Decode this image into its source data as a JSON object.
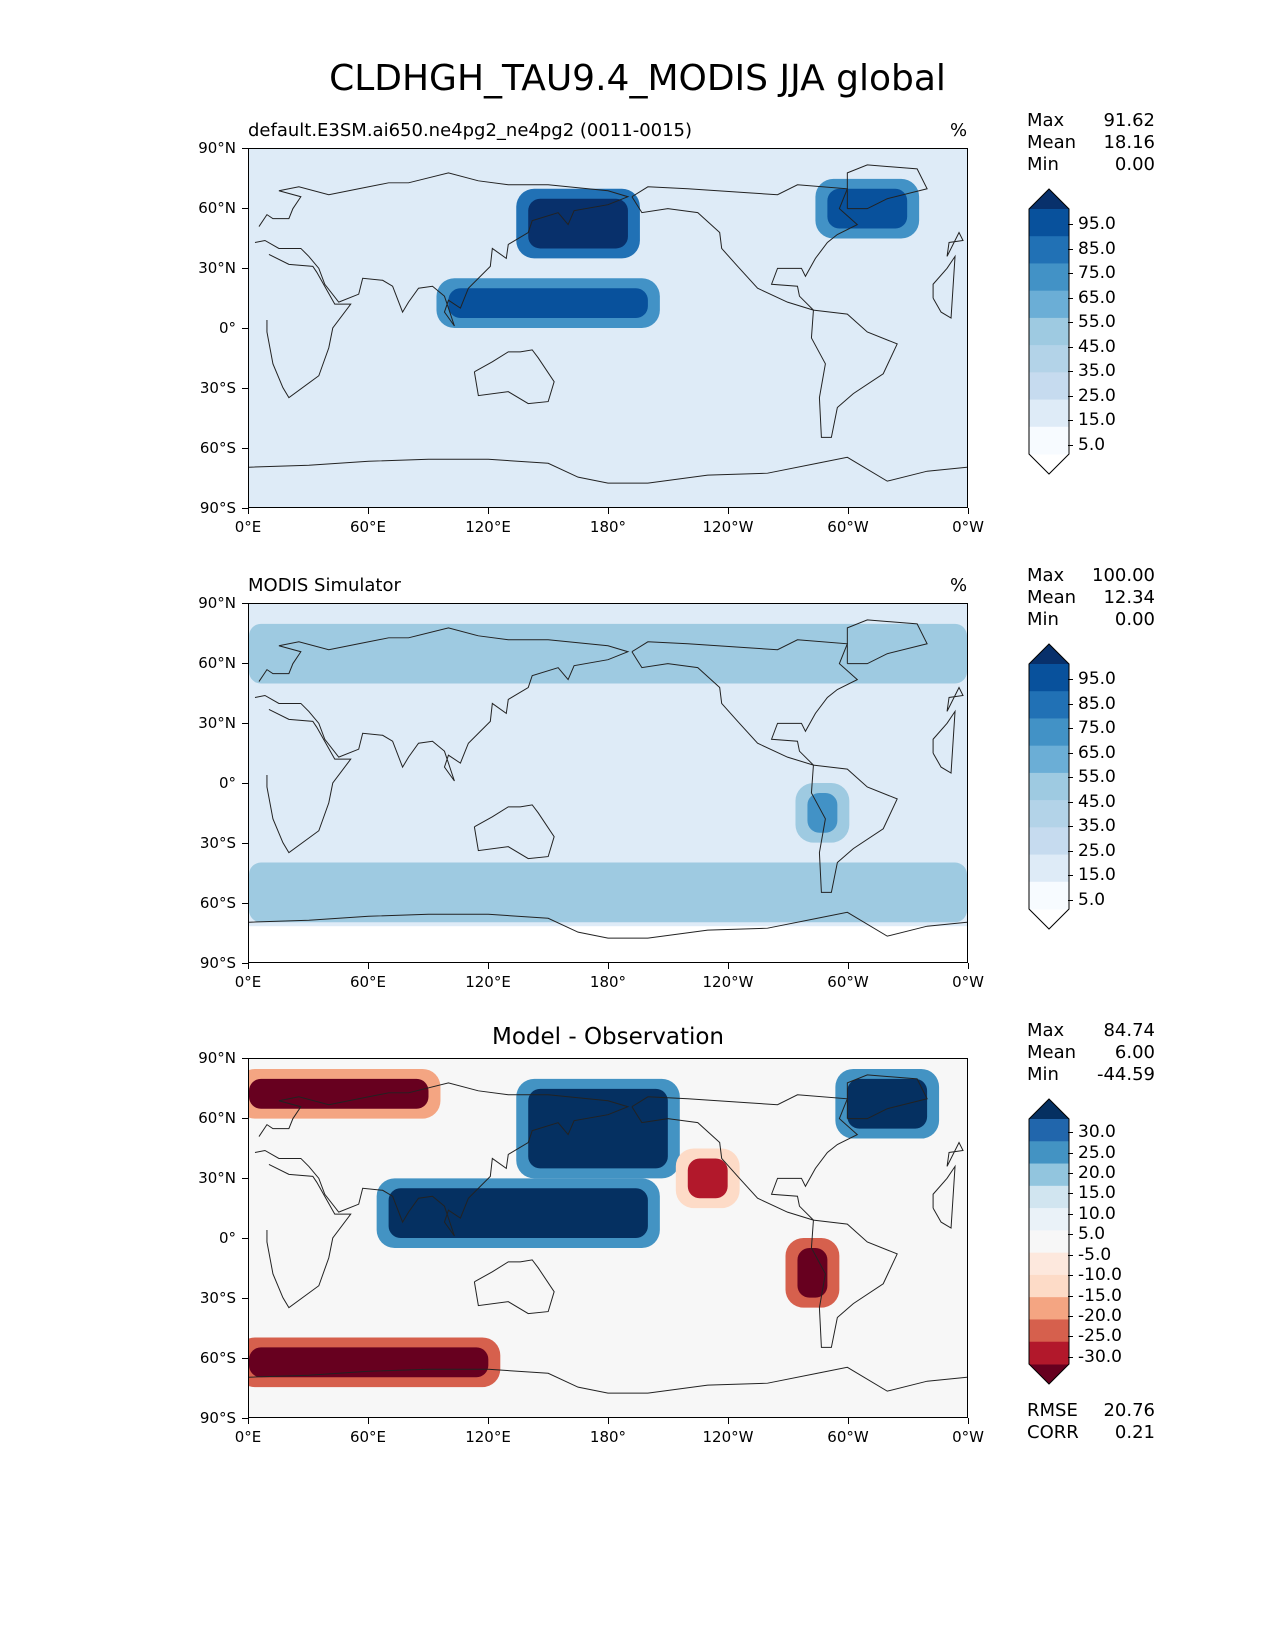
{
  "figure_title": "CLDHGH_TAU9.4_MODIS JJA global",
  "colors": {
    "blues": [
      "#f7fbff",
      "#deebf7",
      "#c6dbef",
      "#9ecae1",
      "#6baed6",
      "#4292c6",
      "#2171b5",
      "#08519c",
      "#08306b"
    ],
    "diverging": [
      "#67001f",
      "#b2182b",
      "#d6604d",
      "#f4a582",
      "#fddbc7",
      "#f7f7f7",
      "#d1e5f0",
      "#92c5de",
      "#4393c3",
      "#2166ac",
      "#053061"
    ],
    "coastline": "#222222"
  },
  "axes": {
    "lat_ticks": [
      "90°N",
      "60°N",
      "30°N",
      "0°",
      "30°S",
      "60°S",
      "90°S"
    ],
    "lon_ticks": [
      "0°E",
      "60°E",
      "120°E",
      "180°",
      "120°W",
      "60°W",
      "0°W"
    ]
  },
  "panels": [
    {
      "id": "model",
      "title_left": "default.E3SM.ai650.ne4pg2_ne4pg2 (0011-0015)",
      "title_right": "%",
      "stats": [
        {
          "label": "Max",
          "value": "91.62"
        },
        {
          "label": "Mean",
          "value": "18.16"
        },
        {
          "label": "Min",
          "value": "0.00"
        }
      ],
      "colorbar": {
        "labels": [
          "95.0",
          "85.0",
          "75.0",
          "65.0",
          "55.0",
          "45.0",
          "35.0",
          "25.0",
          "15.0",
          "5.0"
        ],
        "palette": "blues"
      }
    },
    {
      "id": "obs",
      "title_left": "MODIS Simulator",
      "title_right": "%",
      "stats": [
        {
          "label": "Max",
          "value": "100.00"
        },
        {
          "label": "Mean",
          "value": "12.34"
        },
        {
          "label": "Min",
          "value": "0.00"
        }
      ],
      "colorbar": {
        "labels": [
          "95.0",
          "85.0",
          "75.0",
          "65.0",
          "55.0",
          "45.0",
          "35.0",
          "25.0",
          "15.0",
          "5.0"
        ],
        "palette": "blues"
      }
    },
    {
      "id": "diff",
      "title_center": "Model - Observation",
      "stats": [
        {
          "label": "Max",
          "value": "84.74"
        },
        {
          "label": "Mean",
          "value": "6.00"
        },
        {
          "label": "Min",
          "value": "-44.59"
        }
      ],
      "stats_bottom": [
        {
          "label": "RMSE",
          "value": "20.76"
        },
        {
          "label": "CORR",
          "value": "0.21"
        }
      ],
      "colorbar": {
        "labels": [
          "30.0",
          "25.0",
          "20.0",
          "15.0",
          "10.0",
          "5.0",
          "-5.0",
          "-10.0",
          "-15.0",
          "-20.0",
          "-25.0",
          "-30.0"
        ],
        "palette": "diverging"
      }
    }
  ],
  "chart_data": [
    {
      "type": "heatmap",
      "title": "default.E3SM.ai650.ne4pg2_ne4pg2 (0011-0015)",
      "units": "%",
      "xlim": [
        0,
        360
      ],
      "ylim": [
        -90,
        90
      ],
      "levels": [
        5,
        15,
        25,
        35,
        45,
        55,
        65,
        75,
        85,
        95
      ],
      "max": 91.62,
      "mean": 18.16,
      "min": 0.0,
      "features": [
        {
          "lon": [
            100,
            200
          ],
          "lat": [
            5,
            20
          ],
          "level": 65
        },
        {
          "lon": [
            140,
            190
          ],
          "lat": [
            40,
            65
          ],
          "level": 75
        },
        {
          "lon": [
            290,
            330
          ],
          "lat": [
            50,
            70
          ],
          "level": 65
        }
      ]
    },
    {
      "type": "heatmap",
      "title": "MODIS Simulator",
      "units": "%",
      "xlim": [
        0,
        360
      ],
      "ylim": [
        -90,
        90
      ],
      "levels": [
        5,
        15,
        25,
        35,
        45,
        55,
        65,
        75,
        85,
        95
      ],
      "max": 100.0,
      "mean": 12.34,
      "min": 0.0,
      "features": [
        {
          "lon": [
            0,
            360
          ],
          "lat": [
            -70,
            -40
          ],
          "level": 25
        },
        {
          "lon": [
            0,
            360
          ],
          "lat": [
            50,
            80
          ],
          "level": 25
        },
        {
          "lon": [
            280,
            295
          ],
          "lat": [
            -25,
            -5
          ],
          "level": 45
        }
      ]
    },
    {
      "type": "heatmap",
      "title": "Model - Observation",
      "xlim": [
        0,
        360
      ],
      "ylim": [
        -90,
        90
      ],
      "levels": [
        -30,
        -25,
        -20,
        -15,
        -10,
        -5,
        5,
        10,
        15,
        20,
        25,
        30
      ],
      "max": 84.74,
      "mean": 6.0,
      "min": -44.59,
      "rmse": 20.76,
      "corr": 0.21,
      "features": [
        {
          "lon": [
            70,
            200
          ],
          "lat": [
            0,
            25
          ],
          "level": 30
        },
        {
          "lon": [
            140,
            210
          ],
          "lat": [
            35,
            75
          ],
          "level": 30
        },
        {
          "lon": [
            300,
            340
          ],
          "lat": [
            55,
            80
          ],
          "level": 30
        },
        {
          "lon": [
            0,
            120
          ],
          "lat": [
            -70,
            -55
          ],
          "level": -30
        },
        {
          "lon": [
            0,
            90
          ],
          "lat": [
            65,
            80
          ],
          "level": -25
        },
        {
          "lon": [
            275,
            290
          ],
          "lat": [
            -30,
            -5
          ],
          "level": -30
        },
        {
          "lon": [
            220,
            240
          ],
          "lat": [
            20,
            40
          ],
          "level": -20
        }
      ]
    }
  ]
}
